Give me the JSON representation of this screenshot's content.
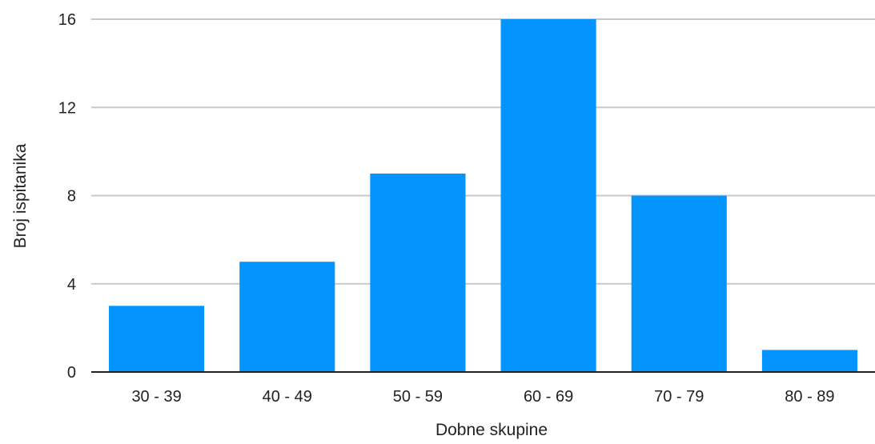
{
  "chart_data": {
    "type": "bar",
    "title": "",
    "xlabel": "Dobne skupine",
    "ylabel": "Broj ispitanika",
    "categories": [
      "30 - 39",
      "40 - 49",
      "50 - 59",
      "60 - 69",
      "70 - 79",
      "80 - 89"
    ],
    "values": [
      3,
      5,
      9,
      16,
      8,
      1
    ],
    "ylim": [
      0,
      16
    ],
    "yticks": [
      0,
      4,
      8,
      12,
      16
    ],
    "ytick_labels": [
      "0",
      "4",
      "8",
      "12",
      "16"
    ],
    "grid": true,
    "legend": "none",
    "colors": {
      "bar": "#0394fd",
      "grid": "#c8c8c8",
      "axis": "#222222"
    }
  }
}
